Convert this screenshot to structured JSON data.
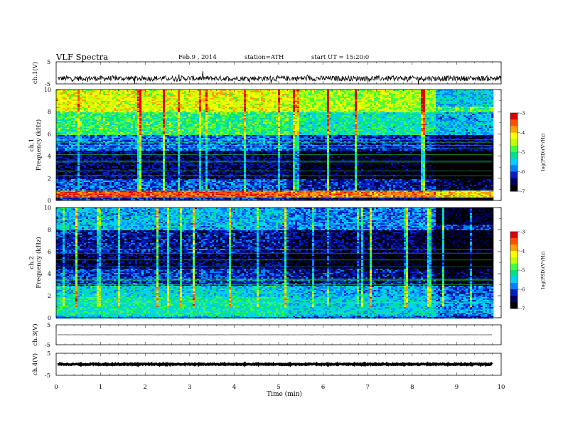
{
  "header": {
    "title": "VLF Spectra",
    "date": "Feb.9 , 2014",
    "station": "station=ATH",
    "start": "start UT = 15:20:0"
  },
  "chart_data": [
    {
      "type": "line",
      "panel": "ch1-waveform",
      "ylabel": "ch.1(V)",
      "ytick_labels": [
        "5",
        "-5"
      ],
      "ylim": [
        -5,
        5
      ],
      "baseline_v": -2.5,
      "noise_amplitude_v": 1.2,
      "xlim": [
        0,
        10
      ]
    },
    {
      "type": "heatmap",
      "panel": "ch1-spectrogram",
      "channel_label": "ch.1",
      "ylabel": "Frequency (kHz)",
      "ylim": [
        0,
        10
      ],
      "ytick_labels": [
        "0",
        "2",
        "4",
        "6",
        "8",
        "10"
      ],
      "xlim": [
        0,
        9.8
      ],
      "segments_min": [
        0,
        5.2,
        8.5
      ],
      "layers": [
        {
          "f": [
            0,
            0.3
          ],
          "logpsd": -6.2
        },
        {
          "f": [
            0.3,
            1.0
          ],
          "logpsd": -3.4
        },
        {
          "f": [
            1.0,
            2.0
          ],
          "logpsd": -6.0
        },
        {
          "f": [
            2.0,
            4.5
          ],
          "logpsd": -6.5
        },
        {
          "f": [
            4.5,
            6.0
          ],
          "logpsd": -5.9
        },
        {
          "f": [
            6.0,
            8.0
          ],
          "logpsd": -5.0
        },
        {
          "f": [
            8.0,
            10.0
          ],
          "logpsd": -4.3
        }
      ],
      "colorbar": {
        "min": -7,
        "max": -3,
        "ticks": [
          "-3",
          "-4",
          "-5",
          "-6",
          "-7"
        ],
        "label": "log(PSD)(V²/Hz)"
      }
    },
    {
      "type": "heatmap",
      "panel": "ch2-spectrogram",
      "channel_label": "ch.2",
      "ylabel": "Frequency (kHz)",
      "ylim": [
        0,
        10
      ],
      "ytick_labels": [
        "0",
        "2",
        "4",
        "6",
        "8",
        "10"
      ],
      "xlim": [
        0,
        9.8
      ],
      "segments_min": [
        0,
        5.2,
        8.5
      ],
      "layers": [
        {
          "f": [
            0,
            0.3
          ],
          "logpsd": -5.5
        },
        {
          "f": [
            0.3,
            2.0
          ],
          "logpsd": -5.2
        },
        {
          "f": [
            2.0,
            3.0
          ],
          "logpsd": -5.4
        },
        {
          "f": [
            3.0,
            4.5
          ],
          "logpsd": -6.1
        },
        {
          "f": [
            4.5,
            6.0
          ],
          "logpsd": -6.6
        },
        {
          "f": [
            6.0,
            8.0
          ],
          "logpsd": -6.3
        },
        {
          "f": [
            8.0,
            10.0
          ],
          "logpsd": -5.6
        }
      ],
      "colorbar": {
        "min": -7,
        "max": -3,
        "ticks": [
          "-3",
          "-4",
          "-5",
          "-6",
          "-7"
        ],
        "label": "log(PSD)(V²/Hz)"
      }
    },
    {
      "type": "line",
      "panel": "ch3-waveform",
      "ylabel": "ch.3(V)",
      "ytick_labels": [
        "5",
        "-5"
      ],
      "ylim": [
        -5,
        5
      ],
      "baseline_v": 0,
      "noise_amplitude_v": 0.05,
      "xlim": [
        0,
        9.8
      ]
    },
    {
      "type": "line",
      "panel": "ch4-waveform",
      "ylabel": "ch.4(V)",
      "ytick_labels": [
        "5",
        "-5"
      ],
      "ylim": [
        -5,
        5
      ],
      "baseline_v": 0,
      "noise_amplitude_v": 0.25,
      "xlim": [
        0,
        9.8
      ]
    }
  ],
  "xaxis": {
    "label": "Time (min)",
    "xlim": [
      0,
      10
    ],
    "tick_labels": [
      "0",
      "1",
      "2",
      "3",
      "4",
      "5",
      "6",
      "7",
      "8",
      "9",
      "10"
    ]
  },
  "colors": {
    "colormap": [
      "#000000",
      "#000060",
      "#0020c0",
      "#0080ff",
      "#00d0ff",
      "#00e090",
      "#40ff40",
      "#c0ff00",
      "#ffff00",
      "#ffa000",
      "#ff5000",
      "#e00000"
    ]
  }
}
